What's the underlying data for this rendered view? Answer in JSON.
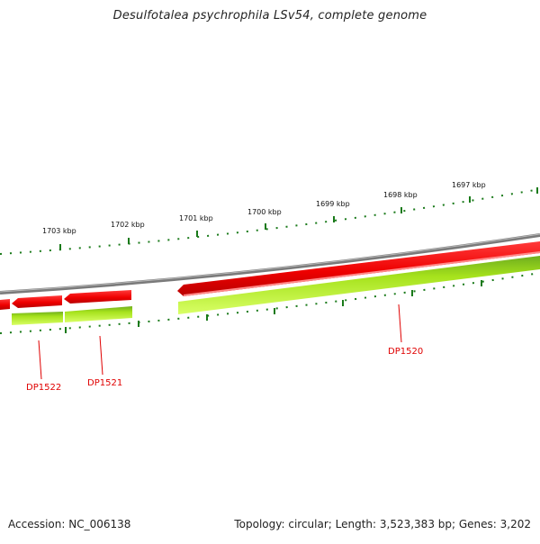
{
  "title": "Desulfotalea psychrophila LSv54, complete genome",
  "footer": {
    "accession": "Accession: NC_006138",
    "summary": "Topology: circular; Length: 3,523,383 bp; Genes: 3,202"
  },
  "scale_labels": [
    "1703 kbp",
    "1702 kbp",
    "1701 kbp",
    "1700 kbp",
    "1699 kbp",
    "1698 kbp",
    "1697 kbp"
  ],
  "genes": [
    {
      "id": "DP1522"
    },
    {
      "id": "DP1521"
    },
    {
      "id": "DP1520"
    }
  ],
  "colors": {
    "backbone": "#808080",
    "gene_forward_track": "#ff0000",
    "gene_reverse_track": "#99dd22",
    "ticks": "#1a7a1a",
    "gene_labels": "#e00000"
  }
}
